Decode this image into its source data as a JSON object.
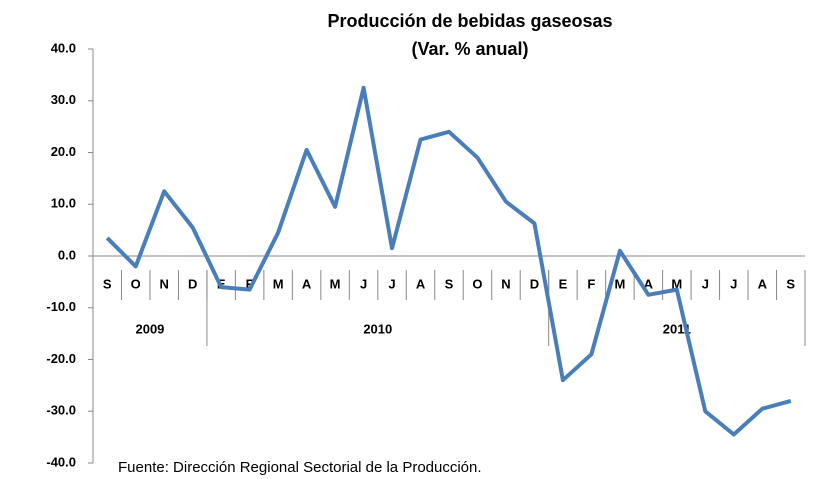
{
  "chart_data": {
    "type": "line",
    "title": "Producción de bebidas gaseosas",
    "subtitle": "(Var. % anual)",
    "categories": [
      "S",
      "O",
      "N",
      "D",
      "E",
      "F",
      "M",
      "A",
      "M",
      "J",
      "J",
      "A",
      "S",
      "O",
      "N",
      "D",
      "E",
      "F",
      "M",
      "A",
      "M",
      "J",
      "J",
      "A",
      "S"
    ],
    "year_groups": [
      {
        "label": "2009",
        "span": 4
      },
      {
        "label": "2010",
        "span": 12
      },
      {
        "label": "2011",
        "span": 9
      }
    ],
    "values": [
      3.5,
      -2,
      12.5,
      5.5,
      -6,
      -6.5,
      4.5,
      20.5,
      9.5,
      32.5,
      1.5,
      22.5,
      24,
      19,
      10.5,
      6.3,
      -24,
      -19,
      1,
      -7.5,
      -6.5,
      -30,
      -34.5,
      -29.5,
      -28
    ],
    "color": "#4a7ebb",
    "ylim": [
      -40,
      40
    ],
    "yticks": [
      {
        "value": -40,
        "label": "-40.0"
      },
      {
        "value": -30,
        "label": "-30.0"
      },
      {
        "value": -20,
        "label": "-20.0"
      },
      {
        "value": -10,
        "label": "-10.0"
      },
      {
        "value": 0,
        "label": "0.0"
      },
      {
        "value": 10,
        "label": "10.0"
      },
      {
        "value": 20,
        "label": "20.0"
      },
      {
        "value": 30,
        "label": "30.0"
      },
      {
        "value": 40,
        "label": "40.0"
      }
    ],
    "note": "Fuente: Dirección Regional Sectorial de la Producción.",
    "grid": false
  }
}
